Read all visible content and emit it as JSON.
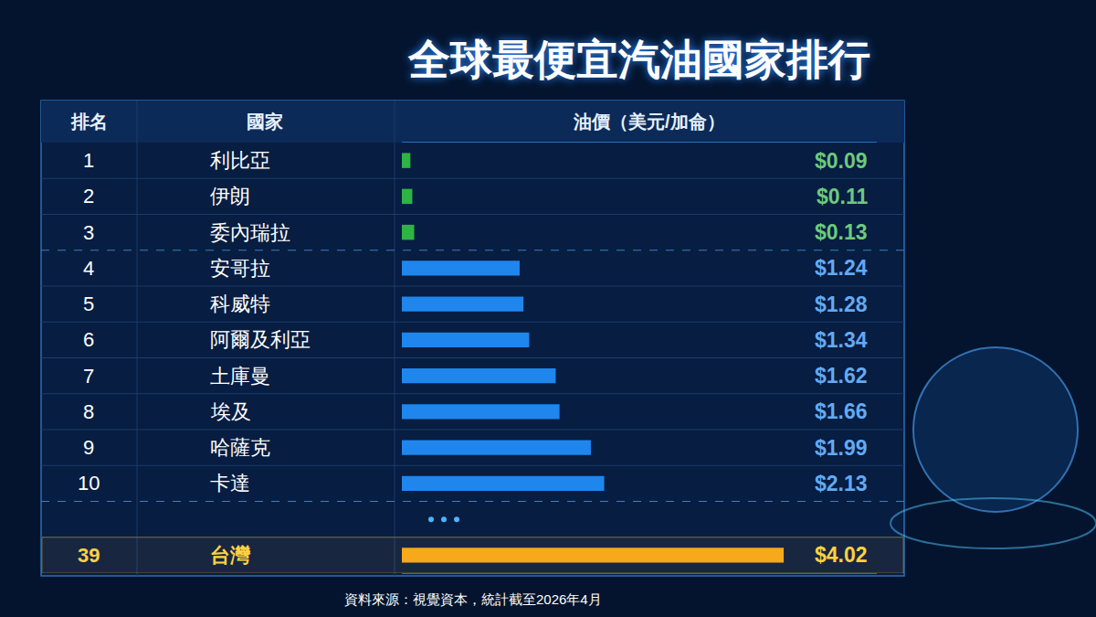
{
  "chart_data": {
    "type": "bar",
    "orientation": "horizontal",
    "title": "全球最便宜汽油國家排行",
    "column_headers": [
      "排名",
      "國家",
      "油價（美元/加侖）"
    ],
    "ranks": [
      1,
      2,
      3,
      4,
      5,
      6,
      7,
      8,
      9,
      10,
      39
    ],
    "categories": [
      "利比亞",
      "伊朗",
      "委內瑞拉",
      "安哥拉",
      "科威特",
      "阿爾及利亞",
      "土庫曼",
      "埃及",
      "哈薩克",
      "卡達",
      "台灣"
    ],
    "values": [
      0.09,
      0.11,
      0.13,
      1.24,
      1.28,
      1.34,
      1.62,
      1.66,
      1.99,
      2.13,
      4.02
    ],
    "value_labels": [
      "$0.09",
      "$0.11",
      "$0.13",
      "$1.24",
      "$1.28",
      "$1.34",
      "$1.62",
      "$1.66",
      "$1.99",
      "$2.13",
      "$4.02"
    ],
    "colors": [
      "#2fb344",
      "#2fb344",
      "#2fb344",
      "#1f86ee",
      "#1f86ee",
      "#1f86ee",
      "#1f86ee",
      "#1f86ee",
      "#1f86ee",
      "#1f86ee",
      "#f7a81b"
    ],
    "xlim": [
      0,
      5
    ],
    "data_labels": true,
    "tick_labels": false,
    "grid": false,
    "note": "資料來源：視覺資本，統計截至2026年4月"
  }
}
